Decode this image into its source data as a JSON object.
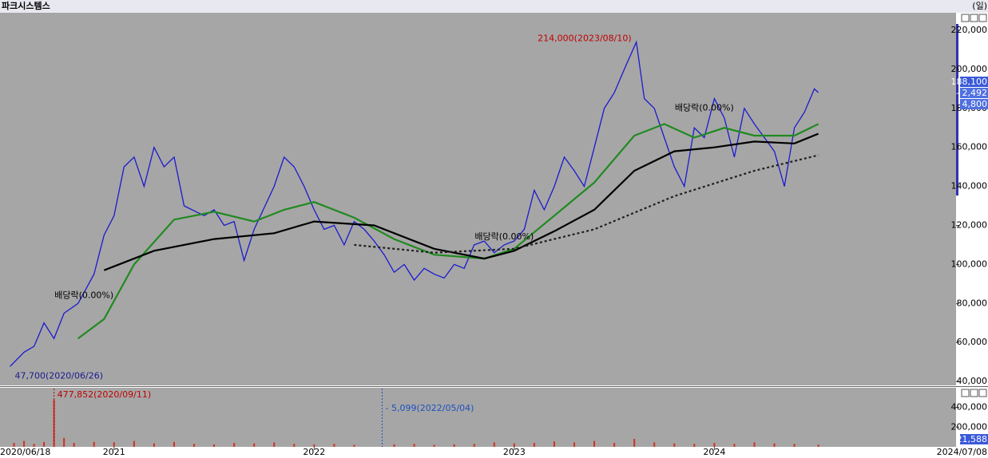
{
  "title": "파크시스템스",
  "period": "(일)",
  "chart_data": [
    {
      "type": "line",
      "xlim": [
        2020.43,
        2025.2
      ],
      "ylim": [
        38400,
        229000
      ],
      "xticks": [
        2021,
        2022,
        2023,
        2024
      ],
      "x_edge_labels": [
        "2020/06/18",
        "2024/07/08"
      ],
      "yticks": [
        {
          "value": 220000,
          "label": "220,000"
        },
        {
          "value": 200000,
          "label": "200,000"
        },
        {
          "value": 180000,
          "label": "180,000"
        },
        {
          "value": 160000,
          "label": "160,000"
        },
        {
          "value": 140000,
          "label": "140,000"
        },
        {
          "value": 120000,
          "label": "120,000"
        },
        {
          "value": 100000,
          "label": "100,000"
        },
        {
          "value": 80000,
          "label": "80,000"
        },
        {
          "value": 60000,
          "label": "60,000"
        },
        {
          "value": 40000,
          "label": "40,000"
        }
      ],
      "price_box": [
        "188,100",
        "- 2,492",
        "4,800"
      ],
      "series": [
        {
          "color": "#1a1ad0",
          "style": "solid",
          "x": [
            2020.48,
            2020.55,
            2020.6,
            2020.65,
            2020.7,
            2020.75,
            2020.82,
            2020.9,
            2020.95,
            2021.0,
            2021.05,
            2021.1,
            2021.15,
            2021.2,
            2021.25,
            2021.3,
            2021.35,
            2021.45,
            2021.5,
            2021.55,
            2021.6,
            2021.65,
            2021.7,
            2021.8,
            2021.85,
            2021.9,
            2021.95,
            2022.0,
            2022.05,
            2022.1,
            2022.15,
            2022.2,
            2022.25,
            2022.3,
            2022.35,
            2022.4,
            2022.45,
            2022.5,
            2022.55,
            2022.6,
            2022.65,
            2022.7,
            2022.75,
            2022.8,
            2022.85,
            2022.9,
            2022.95,
            2023.0,
            2023.05,
            2023.1,
            2023.15,
            2023.2,
            2023.25,
            2023.3,
            2023.35,
            2023.4,
            2023.45,
            2023.5,
            2023.55,
            2023.61,
            2023.65,
            2023.7,
            2023.75,
            2023.8,
            2023.85,
            2023.9,
            2023.95,
            2024.0,
            2024.05,
            2024.1,
            2024.15,
            2024.2,
            2024.25,
            2024.3,
            2024.35,
            2024.4,
            2024.45,
            2024.5,
            2024.52
          ],
          "values": [
            47700,
            55000,
            58000,
            70000,
            62000,
            75000,
            80000,
            95000,
            115000,
            125000,
            150000,
            155000,
            140000,
            160000,
            150000,
            155000,
            130000,
            125000,
            128000,
            120000,
            122000,
            102000,
            118000,
            140000,
            155000,
            150000,
            140000,
            128000,
            118000,
            120000,
            110000,
            122000,
            118000,
            112000,
            105000,
            96000,
            100000,
            92000,
            98000,
            95000,
            93000,
            100000,
            98000,
            110000,
            112000,
            106000,
            110000,
            112000,
            118000,
            138000,
            128000,
            140000,
            155000,
            148000,
            140000,
            160000,
            180000,
            188000,
            200000,
            214000,
            185000,
            180000,
            165000,
            150000,
            140000,
            170000,
            165000,
            185000,
            175000,
            155000,
            180000,
            172000,
            165000,
            158000,
            140000,
            170000,
            178000,
            190000,
            188100
          ]
        },
        {
          "color": "#1f8a1f",
          "style": "solid",
          "x": [
            2020.82,
            2020.95,
            2021.1,
            2021.3,
            2021.5,
            2021.7,
            2021.85,
            2022.0,
            2022.2,
            2022.4,
            2022.6,
            2022.85,
            2023.0,
            2023.2,
            2023.4,
            2023.6,
            2023.75,
            2023.9,
            2024.05,
            2024.2,
            2024.4,
            2024.52
          ],
          "values": [
            62000,
            72000,
            100000,
            123000,
            127000,
            122000,
            128000,
            132000,
            124000,
            113000,
            105000,
            103000,
            108000,
            125000,
            142000,
            166000,
            172000,
            165000,
            170000,
            166000,
            166000,
            172000
          ]
        },
        {
          "color": "#000000",
          "style": "solid",
          "x": [
            2020.95,
            2021.2,
            2021.5,
            2021.8,
            2022.0,
            2022.3,
            2022.6,
            2022.85,
            2023.0,
            2023.2,
            2023.4,
            2023.6,
            2023.8,
            2024.0,
            2024.2,
            2024.4,
            2024.52
          ],
          "values": [
            97000,
            107000,
            113000,
            116000,
            122000,
            120000,
            108000,
            103000,
            107000,
            117000,
            128000,
            148000,
            158000,
            160000,
            163000,
            162000,
            167000
          ]
        },
        {
          "color": "#202020",
          "style": "dashed",
          "x": [
            2022.2,
            2022.6,
            2023.0,
            2023.4,
            2023.8,
            2024.2,
            2024.52
          ],
          "values": [
            110000,
            106000,
            108000,
            118000,
            135000,
            148000,
            156000
          ]
        }
      ],
      "annotations": [
        {
          "text": "214,000(2023/08/10)",
          "x": 2023.61,
          "y": 214000,
          "color": "#c00000",
          "side": "left"
        },
        {
          "text": "47,700(2020/06/26)",
          "x": 2020.48,
          "y": 47700,
          "color": "#1a1a90",
          "side": "right"
        },
        {
          "text": "배당락(0.00%)",
          "x": 2020.85,
          "y": 80000,
          "color": "#000000",
          "side": "center"
        },
        {
          "text": "배당락(0.00%)",
          "x": 2022.95,
          "y": 110000,
          "color": "#000000",
          "side": "center"
        },
        {
          "text": "배당락(0.00%)",
          "x": 2023.95,
          "y": 176000,
          "color": "#000000",
          "side": "center"
        }
      ]
    },
    {
      "type": "bar",
      "xlim": [
        2020.43,
        2025.2
      ],
      "ylim": [
        0,
        590000
      ],
      "color": "#d03020",
      "yticks": [
        {
          "value": 400000,
          "label": "400,000"
        },
        {
          "value": 200000,
          "label": "200,000"
        }
      ],
      "last_volume": "21,588",
      "x": [
        2020.5,
        2020.55,
        2020.6,
        2020.65,
        2020.7,
        2020.75,
        2020.8,
        2020.9,
        2021.0,
        2021.1,
        2021.2,
        2021.3,
        2021.4,
        2021.5,
        2021.6,
        2021.7,
        2021.8,
        2021.9,
        2022.0,
        2022.1,
        2022.2,
        2022.34,
        2022.4,
        2022.5,
        2022.6,
        2022.7,
        2022.8,
        2022.9,
        2023.0,
        2023.1,
        2023.2,
        2023.3,
        2023.4,
        2023.5,
        2023.6,
        2023.7,
        2023.8,
        2023.9,
        2024.0,
        2024.1,
        2024.2,
        2024.3,
        2024.4,
        2024.52
      ],
      "values": [
        40000,
        60000,
        30000,
        50000,
        477852,
        90000,
        40000,
        50000,
        45000,
        60000,
        35000,
        50000,
        30000,
        25000,
        40000,
        35000,
        45000,
        30000,
        25000,
        30000,
        20000,
        5099,
        25000,
        30000,
        20000,
        25000,
        30000,
        45000,
        35000,
        40000,
        55000,
        45000,
        60000,
        40000,
        80000,
        45000,
        35000,
        30000,
        40000,
        30000,
        45000,
        35000,
        30000,
        21588
      ],
      "annotations": [
        {
          "text": "477,852(2020/09/11)",
          "x": 2020.7,
          "y": 477852,
          "color": "#c00000"
        },
        {
          "text": "- 5,099(2022/05/04)",
          "x": 2022.34,
          "y": 5099,
          "color": "#2050c0"
        }
      ]
    }
  ]
}
